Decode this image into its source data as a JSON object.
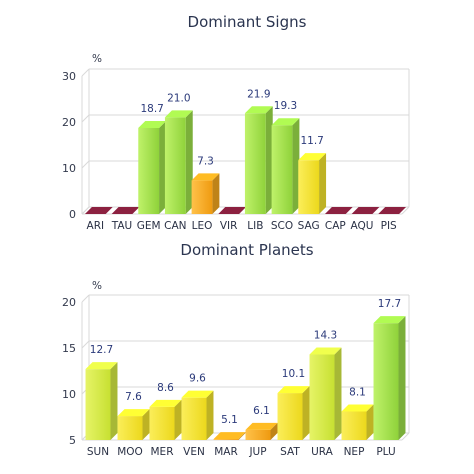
{
  "chart_data": [
    {
      "type": "bar",
      "title": "Dominant Signs",
      "unit_label": "%",
      "categories": [
        "ARI",
        "TAU",
        "GEM",
        "CAN",
        "LEO",
        "VIR",
        "LIB",
        "SCO",
        "SAG",
        "CAP",
        "AQU",
        "PIS"
      ],
      "values": [
        0,
        0,
        18.7,
        21.0,
        7.3,
        0,
        21.9,
        19.3,
        11.7,
        0,
        0,
        0
      ],
      "value_labels": [
        "",
        "",
        "18.7",
        "21.0",
        "7.3",
        "",
        "21.9",
        "19.3",
        "11.7",
        "",
        "",
        ""
      ],
      "yticks": [
        0,
        10,
        20,
        30
      ],
      "ylim": [
        0,
        30
      ],
      "grid": true,
      "legend": false
    },
    {
      "type": "bar",
      "title": "Dominant Planets",
      "unit_label": "%",
      "categories": [
        "SUN",
        "MOO",
        "MER",
        "VEN",
        "MAR",
        "JUP",
        "SAT",
        "URA",
        "NEP",
        "PLU"
      ],
      "values": [
        12.7,
        7.6,
        8.6,
        9.6,
        5.1,
        6.1,
        10.1,
        14.3,
        8.1,
        17.7
      ],
      "value_labels": [
        "12.7",
        "7.6",
        "8.6",
        "9.6",
        "5.1",
        "6.1",
        "10.1",
        "14.3",
        "8.1",
        "17.7"
      ],
      "yticks": [
        5,
        10,
        15,
        20
      ],
      "ylim": [
        5,
        20
      ],
      "grid": true,
      "legend": false
    }
  ],
  "colors": {
    "green": "#9ee04a",
    "yellow_green": "#d6ec45",
    "yellow": "#f3e42e",
    "orange": "#f5a81f",
    "zero_base": "#8c2140",
    "grid": "#d9d9d9"
  }
}
